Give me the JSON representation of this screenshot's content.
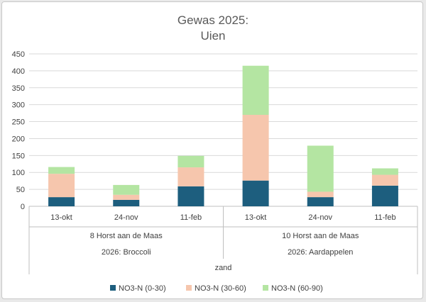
{
  "chart_data": {
    "type": "bar",
    "stacked": true,
    "title": "Gewas 2025:",
    "subtitle": "Uien",
    "categories": [
      "13-okt",
      "24-nov",
      "11-feb",
      "13-okt",
      "24-nov",
      "11-feb"
    ],
    "groups": [
      {
        "location": "8 Horst aan de Maas",
        "crop": "2026: Broccoli",
        "count": 3
      },
      {
        "location": "10 Horst aan de Maas",
        "crop": "2026: Aardappelen",
        "count": 3
      }
    ],
    "soil": "zand",
    "series": [
      {
        "name": "NO3-N (0-30)",
        "color": "#1d5e7e",
        "values": [
          27,
          19,
          59,
          76,
          27,
          61
        ]
      },
      {
        "name": "NO3-N (30-60)",
        "color": "#f6c6ad",
        "values": [
          69,
          15,
          56,
          194,
          16,
          32
        ]
      },
      {
        "name": "NO3-N (60-90)",
        "color": "#b4e5a2",
        "values": [
          20,
          29,
          34,
          145,
          136,
          19
        ]
      }
    ],
    "ylim": [
      0,
      450
    ],
    "yticks": [
      0,
      50,
      100,
      150,
      200,
      250,
      300,
      350,
      400,
      450
    ],
    "grid": true,
    "legend_position": "bottom"
  },
  "colors": {
    "gridline": "#d9d9d9",
    "axis": "#bfbfbf"
  }
}
